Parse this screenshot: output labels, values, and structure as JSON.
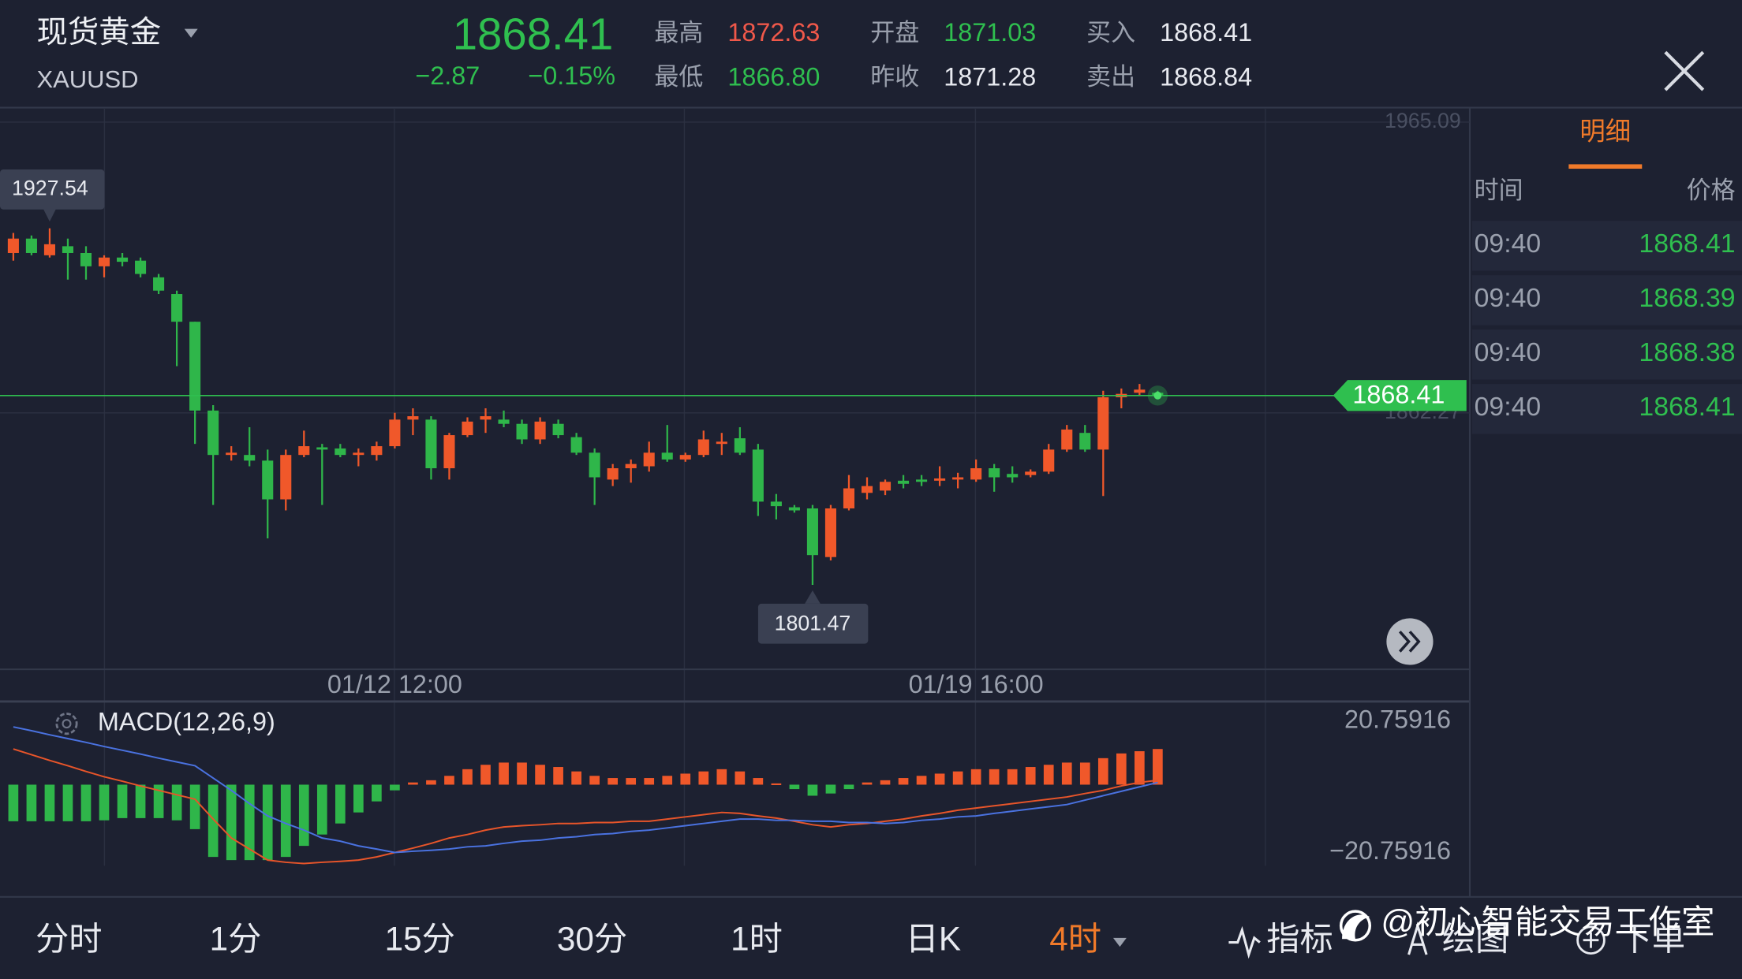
{
  "header": {
    "name": "现货黄金",
    "symbol": "XAUUSD",
    "price": "1868.41",
    "change": "−2.87",
    "change_pct": "−0.15%",
    "stats": [
      {
        "label": "最高",
        "value": "1872.63",
        "color": "#f0584a"
      },
      {
        "label": "开盘",
        "value": "1871.03",
        "color": "#2fbf4f"
      },
      {
        "label": "买入",
        "value": "1868.41",
        "color": "#e8eaf0"
      },
      {
        "label": "最低",
        "value": "1866.80",
        "color": "#2fbf4f"
      },
      {
        "label": "昨收",
        "value": "1871.28",
        "color": "#e8eaf0"
      },
      {
        "label": "卖出",
        "value": "1868.84",
        "color": "#e8eaf0"
      }
    ]
  },
  "chart_data": [
    {
      "type": "candlestick",
      "up_color": "#f0582a",
      "down_color": "#2fb64a",
      "categories": [
        null,
        null,
        null,
        null,
        null,
        null,
        null,
        null,
        null,
        null,
        null,
        null,
        null,
        null,
        null,
        null,
        null,
        null,
        null,
        null,
        null,
        "01/12 12:00",
        null,
        null,
        null,
        null,
        null,
        null,
        null,
        null,
        null,
        null,
        null,
        null,
        null,
        null,
        null,
        null,
        null,
        null,
        null,
        null,
        null,
        null,
        null,
        null,
        null,
        null,
        null,
        null,
        null,
        null,
        null,
        "01/19 16:00",
        null,
        null,
        null,
        null,
        null,
        null,
        null,
        null,
        null,
        null
      ],
      "open": [
        1918.8,
        1923.9,
        1918.0,
        1921.2,
        1918.8,
        1914.1,
        1917.2,
        1916.1,
        1910.2,
        1904.3,
        1894.5,
        1863.1,
        1847.4,
        1847.4,
        1845.4,
        1831.7,
        1847.4,
        1850.1,
        1849.7,
        1847.4,
        1847.4,
        1850.5,
        1859.9,
        1859.9,
        1842.7,
        1854.4,
        1859.9,
        1859.9,
        1858.4,
        1852.9,
        1858.4,
        1853.7,
        1848.2,
        1838.7,
        1842.7,
        1843.4,
        1848.2,
        1845.8,
        1847.4,
        1851.3,
        1853.3,
        1849.3,
        1830.9,
        1828.9,
        1828.5,
        1811.3,
        1828.5,
        1834.0,
        1834.8,
        1838.3,
        1838.7,
        1838.3,
        1838.7,
        1838.7,
        1842.7,
        1840.7,
        1840.3,
        1841.5,
        1849.3,
        1855.2,
        1849.3,
        1867.8,
        1869.4,
        1869.4
      ],
      "high": [
        1925.9,
        1925.0,
        1927.54,
        1923.9,
        1921.2,
        1918.0,
        1918.8,
        1917.2,
        1911.4,
        1905.5,
        1894.5,
        1865.0,
        1850.5,
        1857.2,
        1849.3,
        1849.3,
        1856.0,
        1851.3,
        1851.3,
        1849.7,
        1852.1,
        1862.3,
        1863.9,
        1861.1,
        1855.2,
        1860.7,
        1863.9,
        1863.1,
        1859.9,
        1860.7,
        1859.9,
        1855.2,
        1849.7,
        1844.2,
        1845.8,
        1852.1,
        1858.0,
        1848.2,
        1856.0,
        1855.2,
        1857.2,
        1851.3,
        1833.6,
        1829.7,
        1829.7,
        1829.7,
        1840.3,
        1839.5,
        1838.7,
        1840.3,
        1840.3,
        1843.4,
        1841.1,
        1845.8,
        1844.2,
        1843.4,
        1842.3,
        1851.3,
        1858.0,
        1858.0,
        1870.1,
        1870.9,
        1872.5,
        1870.1
      ],
      "low": [
        1916.1,
        1918.0,
        1917.2,
        1909.4,
        1909.4,
        1910.2,
        1914.1,
        1910.2,
        1904.3,
        1878.8,
        1851.3,
        1829.7,
        1845.4,
        1843.4,
        1817.9,
        1827.8,
        1846.6,
        1829.7,
        1846.6,
        1843.4,
        1845.4,
        1849.7,
        1854.4,
        1838.7,
        1838.7,
        1853.7,
        1855.2,
        1857.2,
        1851.3,
        1851.3,
        1853.3,
        1847.4,
        1829.7,
        1836.4,
        1837.6,
        1841.5,
        1845.0,
        1845.0,
        1846.6,
        1847.4,
        1847.4,
        1825.8,
        1824.6,
        1827.0,
        1801.47,
        1810.1,
        1827.8,
        1831.7,
        1833.2,
        1835.6,
        1836.4,
        1836.4,
        1835.6,
        1837.9,
        1834.4,
        1837.6,
        1839.5,
        1840.7,
        1848.5,
        1848.5,
        1832.9,
        1863.9,
        1868.2,
        1868.2
      ],
      "close": [
        1923.9,
        1918.8,
        1921.9,
        1918.8,
        1914.1,
        1917.2,
        1915.7,
        1911.4,
        1905.5,
        1894.5,
        1863.1,
        1847.4,
        1848.2,
        1845.4,
        1831.7,
        1847.4,
        1850.5,
        1849.3,
        1847.4,
        1848.2,
        1850.5,
        1859.9,
        1861.1,
        1842.7,
        1854.4,
        1859.2,
        1861.1,
        1858.4,
        1852.9,
        1859.2,
        1854.4,
        1848.2,
        1839.5,
        1842.7,
        1844.2,
        1848.2,
        1845.8,
        1847.4,
        1852.9,
        1852.1,
        1848.2,
        1830.9,
        1829.3,
        1827.8,
        1812.0,
        1828.5,
        1835.6,
        1836.4,
        1837.9,
        1837.2,
        1837.9,
        1839.1,
        1839.5,
        1842.7,
        1839.5,
        1839.5,
        1841.5,
        1849.3,
        1856.4,
        1849.3,
        1867.8,
        1869.0,
        1870.5,
        1868.41
      ],
      "ylim": [
        1772.0,
        1969.8
      ],
      "yticks": [
        1965.09,
        1862.27
      ]
    },
    {
      "type": "macd",
      "title": "MACD(12,26,9)",
      "up_color": "#f0582a",
      "down_color": "#2fb64a",
      "ylim": [
        -34.5,
        25.3
      ],
      "yticks": [
        20.75916,
        {
          "value": -20.75916,
          "label": "−20.75916"
        }
      ],
      "histogram": [
        -11.6,
        -11.6,
        -11.6,
        -11.6,
        -11.6,
        -11.3,
        -10.6,
        -10.6,
        -10.6,
        -11.3,
        -14.1,
        -22.9,
        -23.9,
        -23.9,
        -23.9,
        -22.9,
        -19.4,
        -15.8,
        -12.3,
        -8.8,
        -5.3,
        -1.8,
        0.7,
        1.4,
        2.8,
        4.9,
        6.3,
        7.0,
        7.0,
        6.3,
        5.6,
        4.2,
        2.8,
        2.1,
        2.1,
        2.1,
        2.8,
        3.5,
        4.2,
        4.9,
        4.2,
        2.1,
        0.4,
        -1.4,
        -3.5,
        -2.8,
        -1.4,
        0.7,
        1.4,
        2.1,
        2.8,
        3.5,
        4.2,
        4.9,
        4.9,
        4.9,
        5.6,
        6.3,
        7.0,
        7.0,
        8.4,
        9.9,
        10.6,
        11.3
      ],
      "series": [
        {
          "color": "#e8552a",
          "values": [
            11.3,
            9.5,
            7.7,
            6.0,
            4.2,
            2.5,
            1.1,
            -0.4,
            -1.8,
            -3.2,
            -4.6,
            -10.9,
            -16.9,
            -20.4,
            -23.9,
            -24.6,
            -25.0,
            -24.6,
            -24.3,
            -23.9,
            -22.9,
            -21.5,
            -20.1,
            -18.6,
            -16.9,
            -15.8,
            -14.4,
            -13.4,
            -13.0,
            -12.7,
            -12.3,
            -12.3,
            -12.0,
            -12.0,
            -11.6,
            -11.6,
            -10.9,
            -10.2,
            -9.5,
            -8.8,
            -9.1,
            -9.9,
            -10.6,
            -11.6,
            -12.7,
            -13.4,
            -12.7,
            -12.3,
            -11.6,
            -10.9,
            -9.9,
            -9.1,
            -8.1,
            -7.4,
            -6.7,
            -6.0,
            -5.3,
            -4.6,
            -3.9,
            -2.8,
            -1.8,
            -0.4,
            0.7,
            1.4
          ]
        },
        {
          "color": "#4a72e0",
          "values": [
            18.3,
            17.1,
            15.8,
            14.6,
            13.4,
            12.1,
            10.9,
            9.7,
            8.4,
            7.2,
            6.0,
            2.1,
            -1.8,
            -6.0,
            -9.9,
            -12.3,
            -14.4,
            -16.9,
            -17.9,
            -19.4,
            -20.4,
            -21.5,
            -21.1,
            -20.8,
            -20.4,
            -19.7,
            -19.4,
            -18.6,
            -17.9,
            -17.6,
            -16.9,
            -16.5,
            -15.8,
            -15.5,
            -14.8,
            -14.4,
            -13.7,
            -13.0,
            -12.3,
            -11.6,
            -10.9,
            -10.9,
            -11.3,
            -11.3,
            -11.6,
            -11.6,
            -12.0,
            -12.0,
            -12.3,
            -12.0,
            -11.3,
            -10.9,
            -10.2,
            -9.9,
            -9.1,
            -8.4,
            -7.7,
            -7.0,
            -6.3,
            -4.9,
            -3.5,
            -2.1,
            -0.7,
            0.7
          ]
        }
      ]
    }
  ],
  "detail_panel": {
    "tab": "明细",
    "columns": [
      "时间",
      "价格"
    ],
    "rows": [
      [
        "09:40",
        "1868.41"
      ],
      [
        "09:40",
        "1868.39"
      ],
      [
        "09:40",
        "1868.38"
      ],
      [
        "09:40",
        "1868.41"
      ]
    ]
  },
  "timeframes": [
    "分时",
    "1分",
    "15分",
    "30分",
    "1时",
    "日K",
    "4时"
  ],
  "selected_timeframe": 6,
  "tools": [
    "指标",
    "绘图",
    "下单"
  ],
  "watermark": "@初心智能交易工作室"
}
